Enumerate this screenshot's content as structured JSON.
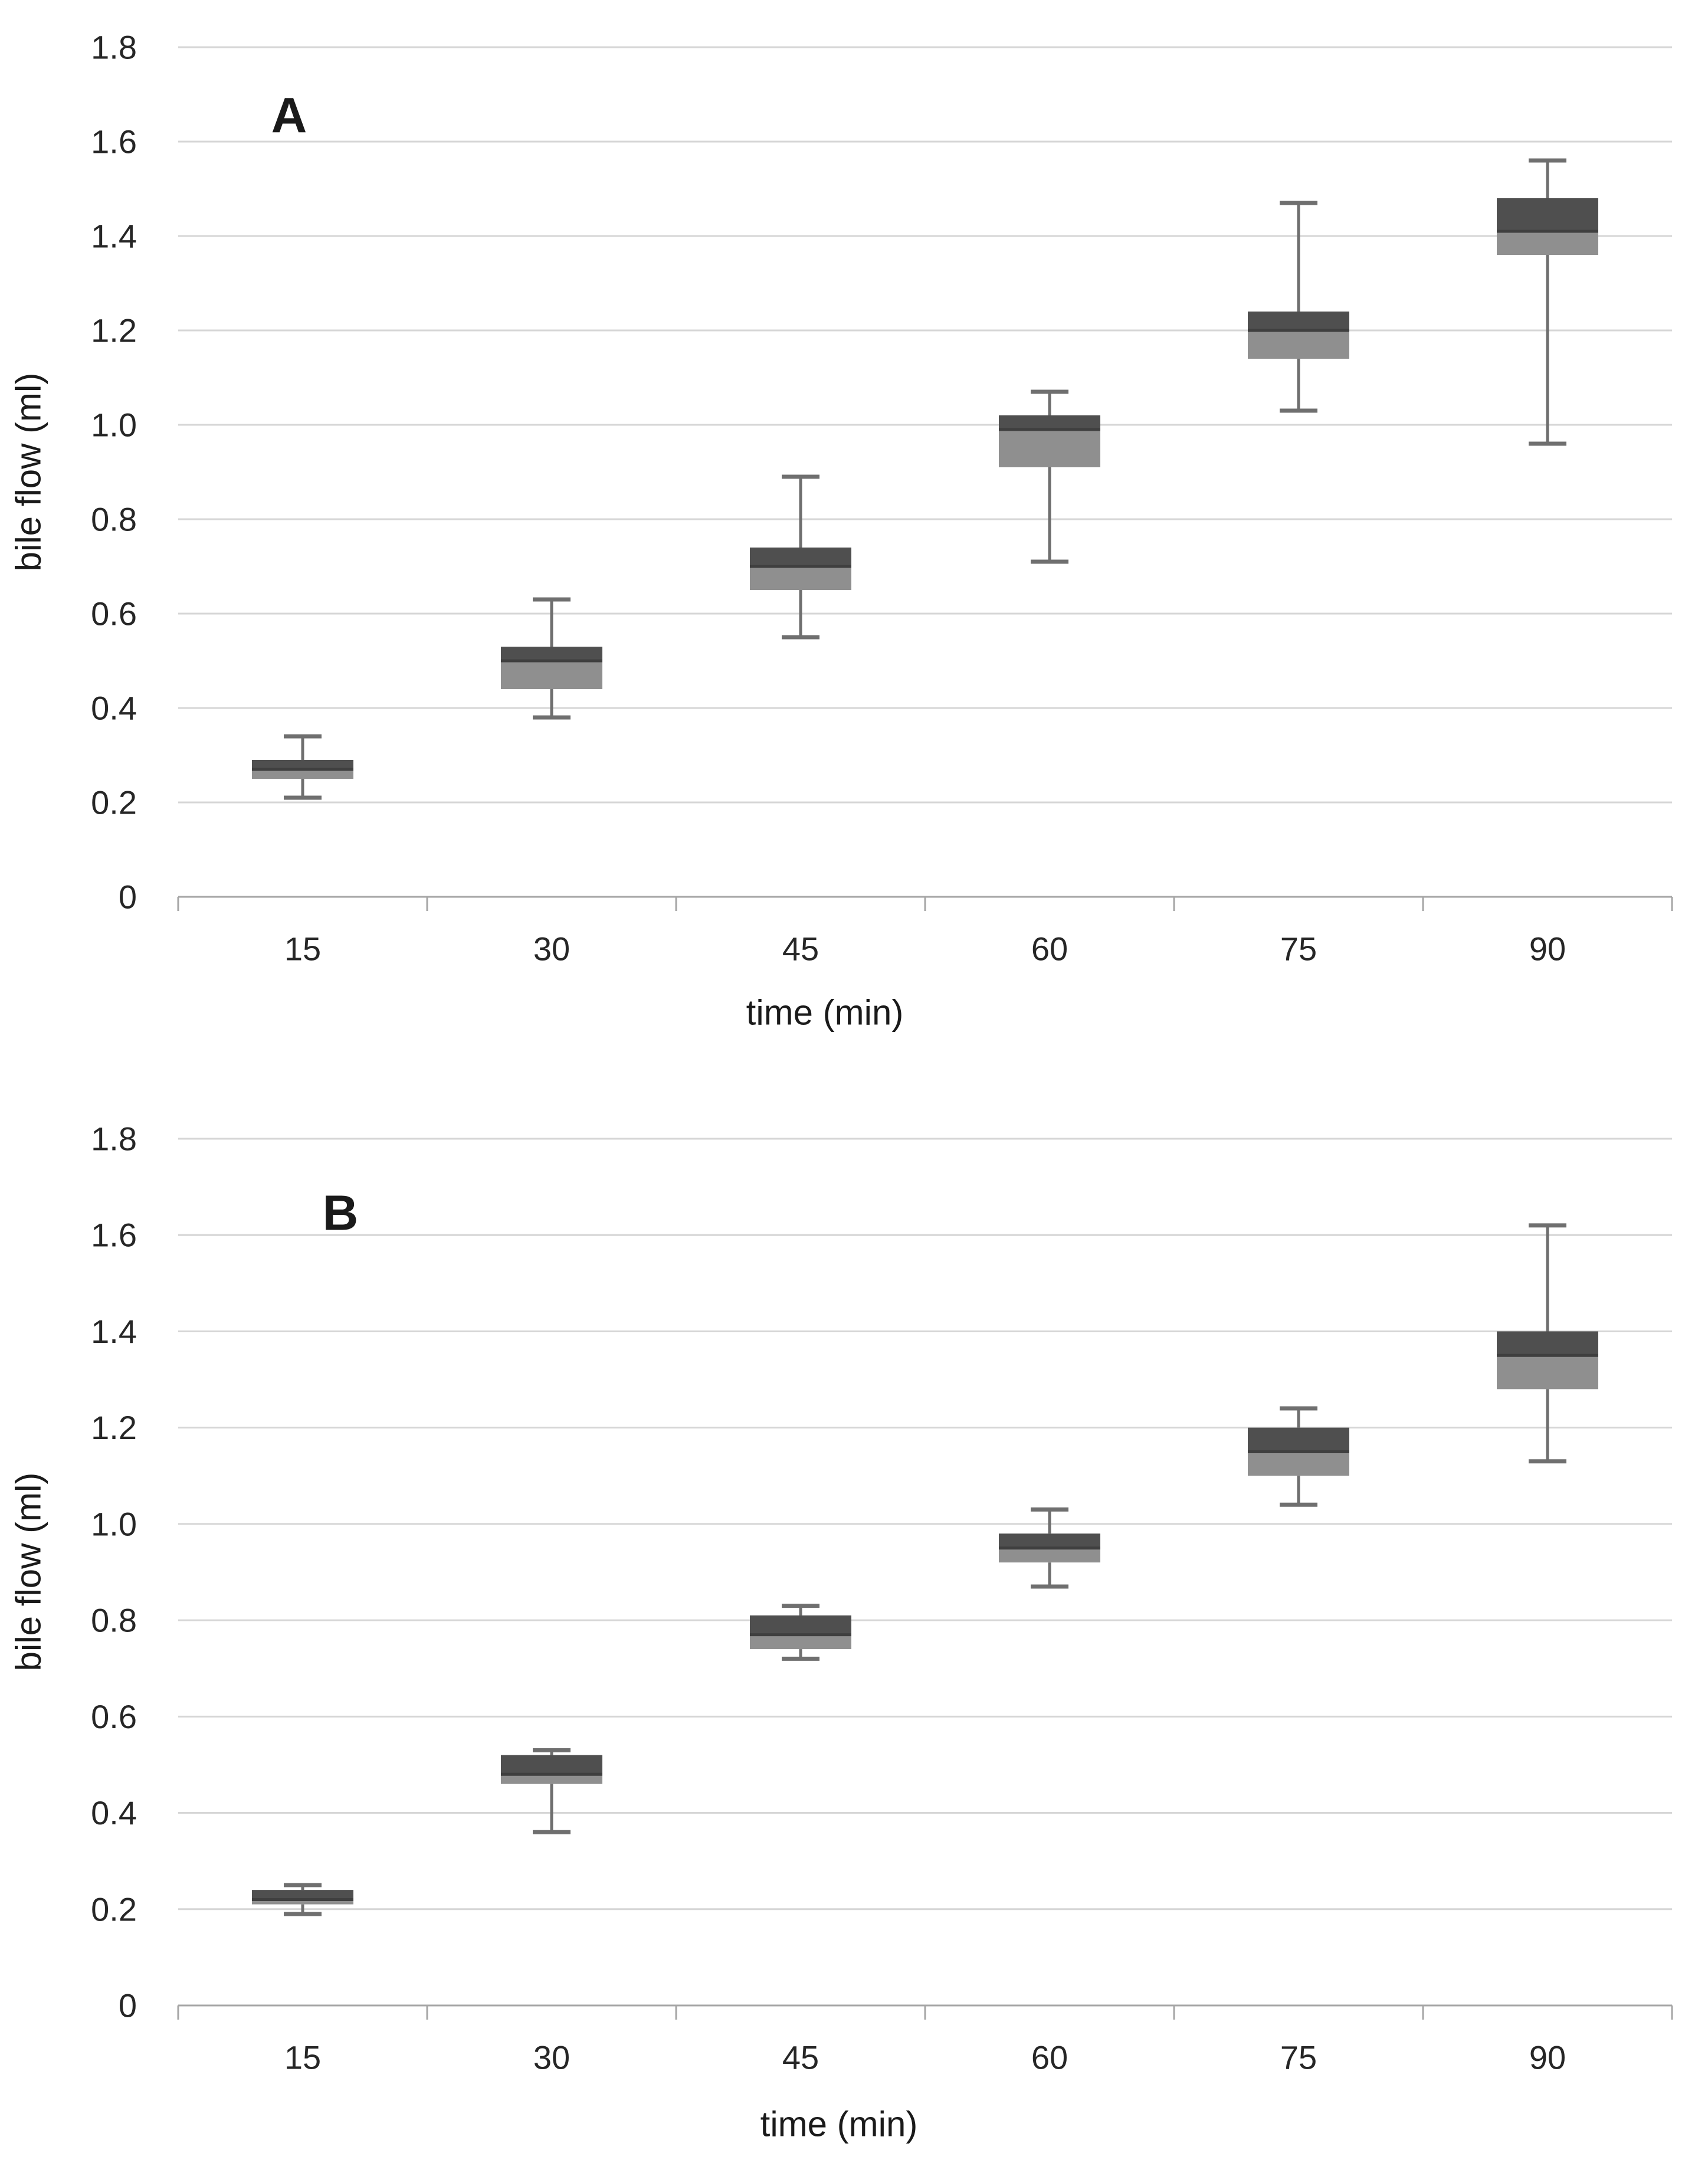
{
  "figure": {
    "background": "#ffffff",
    "colors": {
      "box_upper_dark": "#4f4f4f",
      "box_lower_light": "#8f8f8f",
      "median_line": "#3f3f3f",
      "whisker": "#6f6f6f",
      "gridline": "#d6d6d6",
      "axis_line": "#a6a6a6",
      "tick_text": "#262626",
      "title_text": "#1a1a1a"
    }
  },
  "chart_data": [
    {
      "type": "boxplot",
      "panel_label": "A",
      "xlabel": "time (min)",
      "ylabel": "bile flow (ml)",
      "categories": [
        "15",
        "30",
        "45",
        "60",
        "75",
        "90"
      ],
      "y_tick_labels": [
        "1.8",
        "1.6",
        "1.4",
        "1.2",
        "1.0",
        "0.8",
        "0.6",
        "0.4",
        "0.2",
        "0"
      ],
      "ylim": [
        0,
        1.8
      ],
      "ytick_step": 0.2,
      "grid": true,
      "boxes": [
        {
          "x": "15",
          "min": 0.21,
          "q1": 0.25,
          "median": 0.27,
          "q3": 0.29,
          "max": 0.34
        },
        {
          "x": "30",
          "min": 0.38,
          "q1": 0.44,
          "median": 0.5,
          "q3": 0.53,
          "max": 0.63
        },
        {
          "x": "45",
          "min": 0.55,
          "q1": 0.65,
          "median": 0.7,
          "q3": 0.74,
          "max": 0.89
        },
        {
          "x": "60",
          "min": 0.71,
          "q1": 0.91,
          "median": 0.99,
          "q3": 1.02,
          "max": 1.07
        },
        {
          "x": "75",
          "min": 1.03,
          "q1": 1.14,
          "median": 1.2,
          "q3": 1.24,
          "max": 1.47
        },
        {
          "x": "90",
          "min": 0.96,
          "q1": 1.36,
          "median": 1.41,
          "q3": 1.48,
          "max": 1.56
        }
      ]
    },
    {
      "type": "boxplot",
      "panel_label": "B",
      "xlabel": "time (min)",
      "ylabel": "bile flow (ml)",
      "categories": [
        "15",
        "30",
        "45",
        "60",
        "75",
        "90"
      ],
      "y_tick_labels": [
        "1.8",
        "1.6",
        "1.4",
        "1.2",
        "1.0",
        "0.8",
        "0.6",
        "0.4",
        "0.2",
        "0"
      ],
      "ylim": [
        0,
        1.8
      ],
      "ytick_step": 0.2,
      "grid": true,
      "boxes": [
        {
          "x": "15",
          "min": 0.19,
          "q1": 0.21,
          "median": 0.22,
          "q3": 0.24,
          "max": 0.25
        },
        {
          "x": "30",
          "min": 0.36,
          "q1": 0.46,
          "median": 0.48,
          "q3": 0.52,
          "max": 0.53
        },
        {
          "x": "45",
          "min": 0.72,
          "q1": 0.74,
          "median": 0.77,
          "q3": 0.81,
          "max": 0.83
        },
        {
          "x": "60",
          "min": 0.87,
          "q1": 0.92,
          "median": 0.95,
          "q3": 0.98,
          "max": 1.03
        },
        {
          "x": "75",
          "min": 1.04,
          "q1": 1.1,
          "median": 1.15,
          "q3": 1.2,
          "max": 1.24
        },
        {
          "x": "90",
          "min": 1.13,
          "q1": 1.28,
          "median": 1.35,
          "q3": 1.4,
          "max": 1.62
        }
      ]
    }
  ]
}
